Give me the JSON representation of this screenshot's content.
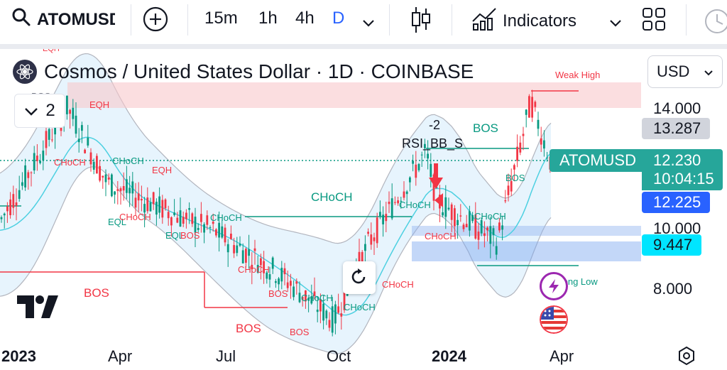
{
  "toolbar": {
    "symbol": "ATOMUSD",
    "intervals": [
      "15m",
      "1h",
      "4h",
      "D"
    ],
    "active_interval": "D",
    "indicators_label": "Indicators"
  },
  "header": {
    "title": "Cosmos / United States Dollar · 1D · COINBASE",
    "collapse_count": "2",
    "currency": "USD"
  },
  "price_scale": {
    "labels": [
      "14.000",
      "10.000",
      "8.000"
    ],
    "tags": {
      "bb_upper": "13.287",
      "symbol_name": "ATOMUSD",
      "last_price": "12.230",
      "countdown": "10:04:15",
      "bid": "12.225",
      "indicator": "9.447"
    }
  },
  "time_axis": {
    "labels": [
      "2023",
      "Apr",
      "Jul",
      "Oct",
      "2024",
      "Apr"
    ]
  },
  "annotations": {
    "weak_high": "Weak High",
    "strong_low": "Strong Low",
    "eqh": "EQH",
    "eql": "EQL",
    "bos": "BOS",
    "choch": "CHoCH",
    "signal_value": "-2",
    "signal_name": "RSI_BB_S"
  },
  "colors": {
    "bull": "#089981",
    "bear": "#f23645",
    "accent": "#2962ff",
    "bb_fill": "#e3f2fd",
    "ma_line": "#4dd0e1",
    "tag_green": "#26a69a",
    "tag_blue": "#2962ff",
    "tag_cyan": "#00e5ff"
  },
  "chart_data": {
    "type": "candlestick",
    "title": "Cosmos / United States Dollar · 1D · COINBASE",
    "x_labels": [
      "2023",
      "Apr",
      "Jul",
      "Oct",
      "2024",
      "Apr"
    ],
    "y_ticks": [
      14.0,
      10.0,
      8.0
    ],
    "ylim": [
      6.8,
      16.0
    ],
    "grid": false,
    "key_points": [
      {
        "x": "2023",
        "close": 10.2
      },
      {
        "x": "Feb 2023",
        "close": 14.0
      },
      {
        "x": "Apr",
        "close": 11.5
      },
      {
        "x": "May",
        "close": 10.6
      },
      {
        "x": "Jul",
        "close": 9.9
      },
      {
        "x": "Aug",
        "close": 8.5
      },
      {
        "x": "Oct",
        "close": 6.9
      },
      {
        "x": "Nov",
        "close": 9.5
      },
      {
        "x": "Dec",
        "close": 12.5
      },
      {
        "x": "2024",
        "close": 10.9
      },
      {
        "x": "Feb 2024",
        "close": 9.5
      },
      {
        "x": "Mar 2024",
        "close": 14.2
      },
      {
        "x": "Apr",
        "close": 12.23
      }
    ],
    "last_price": 12.23,
    "bb_upper": 13.287,
    "indicator_value": 9.447
  }
}
